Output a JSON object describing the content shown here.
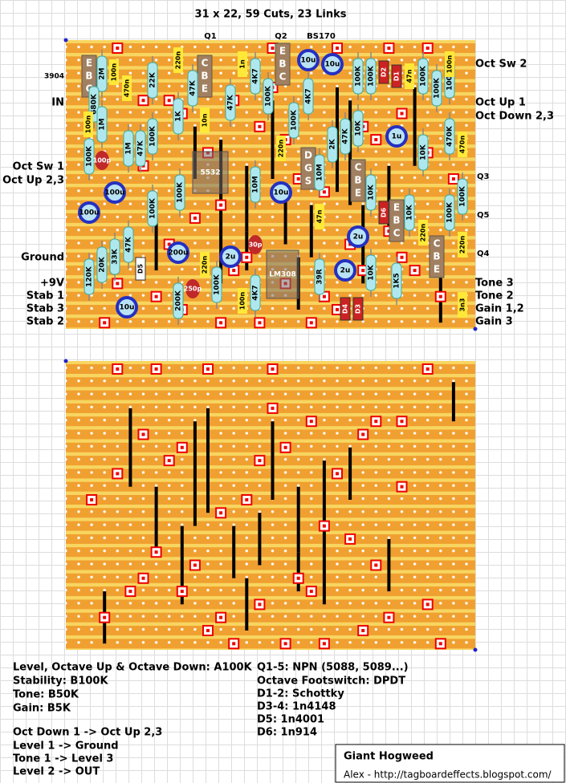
{
  "header": {
    "title": "31 x 22, 59 Cuts, 23 Links",
    "top_labels": [
      "Q1",
      "Q2",
      "BS170"
    ]
  },
  "left_labels": [
    "3904",
    "IN",
    "Oct Sw 1",
    "Oct Up 2,3",
    "Ground",
    "+9V",
    "Stab 1",
    "Stab 3",
    "Stab 2"
  ],
  "right_labels": [
    "Oct Sw 2",
    "Oct Up 1",
    "Oct Down 2,3",
    "Q3",
    "Q5",
    "Q4",
    "Tone 3",
    "Tone 2",
    "Gain 1,2",
    "Gain 3"
  ],
  "resistors": [
    "2M",
    "680K",
    "1M",
    "100K",
    "22K",
    "47K",
    "1K",
    "47K",
    "4K7",
    "100K",
    "100K",
    "47K",
    "1M",
    "100K",
    "100K",
    "4K7",
    "100K",
    "10M",
    "10M",
    "2K",
    "47K",
    "10K",
    "100K",
    "100K",
    "100K",
    "100K",
    "100K",
    "470K",
    "10K",
    "10K",
    "10K",
    "100K",
    "100K",
    "47K",
    "20K",
    "33K",
    "120K",
    "200K",
    "100K",
    "4K7",
    "39R",
    "10K",
    "1K5"
  ],
  "film_caps": [
    "100n",
    "470n",
    "100n",
    "220n",
    "1n",
    "10n",
    "220n",
    "47n",
    "470n",
    "47n",
    "220n",
    "220n",
    "220n",
    "100n",
    "3n3",
    "100n"
  ],
  "electrolytics": [
    "10u",
    "10u",
    "1u",
    "100u",
    "100u",
    "10u",
    "2u",
    "200u",
    "2u",
    "2u",
    "10u"
  ],
  "ceramics": [
    "100p",
    "30p",
    "250p"
  ],
  "diodes": [
    "D2",
    "D1",
    "D6",
    "D4",
    "D3",
    "D5"
  ],
  "transistors": [
    [
      "E",
      "B",
      "C"
    ],
    [
      "C",
      "B",
      "E"
    ],
    [
      "E",
      "B",
      "C"
    ],
    [
      "D",
      "G",
      "S"
    ],
    [
      "C",
      "B",
      "E"
    ],
    [
      "E",
      "B",
      "C"
    ],
    [
      "C",
      "B",
      "E"
    ]
  ],
  "ics": [
    "5532",
    "LM308"
  ],
  "notes_left": [
    "Level, Octave Up & Octave Down: A100K",
    "Stability: B100K",
    "Tone: B50K",
    "Gain: B5K",
    "Oct Down 1 -> Oct Up 2,3",
    "Level 1 -> Ground",
    "Tone 1 -> Level 3",
    "Level 2 -> OUT"
  ],
  "notes_right": [
    "Q1-5: NPN (5088, 5089...)",
    "Octave Footswitch: DPDT",
    "D1-2: Schottky",
    "D3-4: 1n4148",
    "D5: 1n4001",
    "D6: 1n914"
  ],
  "credit": {
    "title": "Giant Hogweed",
    "author": "Alex - http://tagboardeffects.blogspot.com/"
  }
}
